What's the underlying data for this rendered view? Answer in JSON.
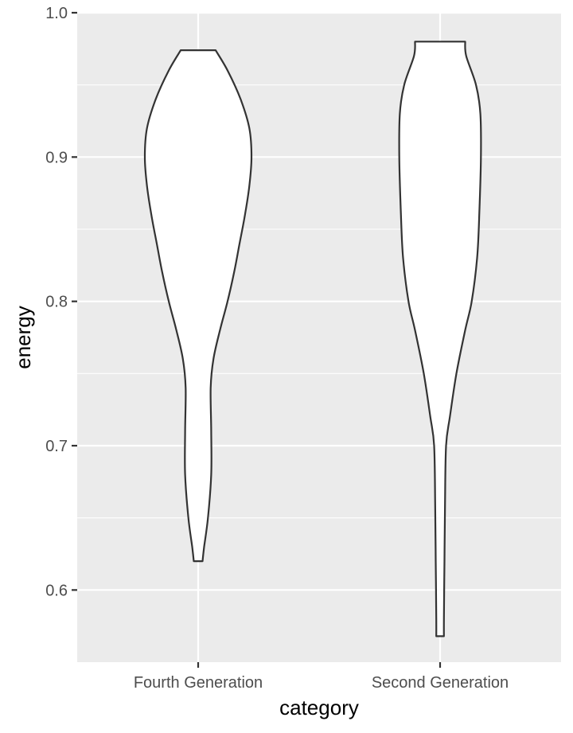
{
  "chart_data": {
    "type": "violin",
    "xlabel": "category",
    "ylabel": "energy",
    "categories": [
      "Fourth Generation",
      "Second Generation"
    ],
    "ylim": [
      0.55,
      1.0
    ],
    "yticks": [
      0.6,
      0.7,
      0.8,
      0.9,
      1.0
    ],
    "ytick_labels": [
      "0.6",
      "0.7",
      "0.8",
      "0.9",
      "1.0"
    ],
    "grid": true,
    "panel_background": "#ebebeb",
    "grid_color": "#ffffff",
    "violin_fill": "#ffffff",
    "violin_stroke": "#333333",
    "series": [
      {
        "category": "Fourth Generation",
        "min": 0.62,
        "max": 0.974,
        "profile": [
          [
            0.62,
            0.04
          ],
          [
            0.63,
            0.055
          ],
          [
            0.65,
            0.09
          ],
          [
            0.68,
            0.12
          ],
          [
            0.71,
            0.12
          ],
          [
            0.74,
            0.115
          ],
          [
            0.76,
            0.14
          ],
          [
            0.78,
            0.2
          ],
          [
            0.8,
            0.27
          ],
          [
            0.82,
            0.33
          ],
          [
            0.84,
            0.38
          ],
          [
            0.86,
            0.43
          ],
          [
            0.88,
            0.47
          ],
          [
            0.9,
            0.49
          ],
          [
            0.92,
            0.47
          ],
          [
            0.94,
            0.39
          ],
          [
            0.96,
            0.27
          ],
          [
            0.974,
            0.16
          ]
        ]
      },
      {
        "category": "Second Generation",
        "min": 0.568,
        "max": 0.98,
        "profile": [
          [
            0.568,
            0.035
          ],
          [
            0.58,
            0.035
          ],
          [
            0.62,
            0.04
          ],
          [
            0.66,
            0.045
          ],
          [
            0.7,
            0.055
          ],
          [
            0.72,
            0.09
          ],
          [
            0.75,
            0.15
          ],
          [
            0.78,
            0.23
          ],
          [
            0.8,
            0.29
          ],
          [
            0.83,
            0.34
          ],
          [
            0.86,
            0.36
          ],
          [
            0.9,
            0.375
          ],
          [
            0.93,
            0.37
          ],
          [
            0.95,
            0.33
          ],
          [
            0.97,
            0.24
          ],
          [
            0.98,
            0.23
          ]
        ]
      }
    ]
  }
}
